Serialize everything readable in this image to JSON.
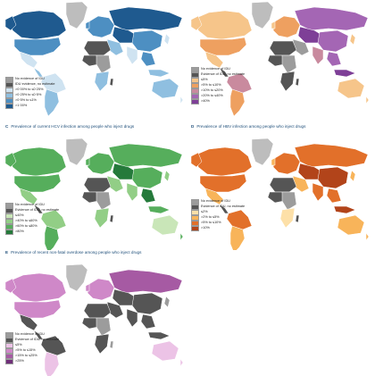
{
  "colors": {
    "no_evidence": "#9c9c9c",
    "no_estimate": "#555555",
    "greenland": "#bdbdbd",
    "background": "#ffffff"
  },
  "panels": [
    {
      "id": "A",
      "letter": "",
      "title": "",
      "legend": [
        {
          "label": "No evidence of IDU",
          "color": "#9c9c9c"
        },
        {
          "label": "IDU evidence, no estimate",
          "color": "#555555"
        },
        {
          "label": ">0·00% to ≤0·25%",
          "color": "#cfe3f1"
        },
        {
          "label": ">0·25% to ≤0·5%",
          "color": "#8fbfe0"
        },
        {
          "label": ">0·5% to ≤1%",
          "color": "#4d8fc2"
        },
        {
          "label": ">1·00%",
          "color": "#1f5a8f"
        }
      ]
    },
    {
      "id": "B",
      "letter": "",
      "title": "",
      "legend": [
        {
          "label": "No evidence of IDU",
          "color": "#9c9c9c"
        },
        {
          "label": "Evidence of IDU, no estimate",
          "color": "#555555"
        },
        {
          "label": "≤5%",
          "color": "#f6c58a"
        },
        {
          "label": ">5% to ≤10%",
          "color": "#eea060"
        },
        {
          "label": ">10% to ≤20%",
          "color": "#c98a9e"
        },
        {
          "label": ">20% to ≤40%",
          "color": "#a466b4"
        },
        {
          "label": ">40%",
          "color": "#7e3f97"
        }
      ]
    },
    {
      "id": "C",
      "letter": "C",
      "title": "Prevalence of current HCV infection among people who inject drugs",
      "legend": [
        {
          "label": "No evidence of IDU",
          "color": "#9c9c9c"
        },
        {
          "label": "Evidence of IDU, no estimate",
          "color": "#555555"
        },
        {
          "label": "≤40%",
          "color": "#c9e6b8"
        },
        {
          "label": ">40% to ≤60%",
          "color": "#92ce86"
        },
        {
          "label": ">60% to ≤80%",
          "color": "#56ae5c"
        },
        {
          "label": ">80%",
          "color": "#257a3b"
        }
      ]
    },
    {
      "id": "D",
      "letter": "D",
      "title": "Prevalence of HBV infection among people who inject drugs",
      "legend": [
        {
          "label": "No evidence of IDU",
          "color": "#9c9c9c"
        },
        {
          "label": "Evidence of IDU, no estimate",
          "color": "#555555"
        },
        {
          "label": "≤2%",
          "color": "#fde0a8"
        },
        {
          "label": ">2% to ≤5%",
          "color": "#f8b45a"
        },
        {
          "label": ">5% to ≤10%",
          "color": "#e2702a"
        },
        {
          "label": ">10%",
          "color": "#b2441a"
        }
      ]
    },
    {
      "id": "E",
      "letter": "E",
      "title": "Prevalence of recent non-fatal overdose among people who inject drugs",
      "legend": [
        {
          "label": "No evidence of IDU",
          "color": "#9c9c9c"
        },
        {
          "label": "Evidence of IDU, no estimate",
          "color": "#555555"
        },
        {
          "label": "≤5%",
          "color": "#ecc3e6"
        },
        {
          "label": ">5% to ≤15%",
          "color": "#cf88c8"
        },
        {
          "label": ">15% to ≤25%",
          "color": "#a65aa3"
        },
        {
          "label": ">25%",
          "color": "#6f2f78"
        }
      ]
    }
  ]
}
